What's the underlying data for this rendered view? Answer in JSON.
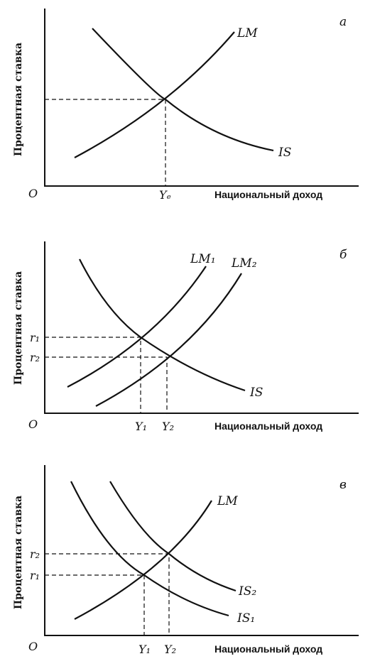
{
  "panels": [
    {
      "letter": "а",
      "y_axis_label": "Процентная ставка",
      "x_axis_label": "Национальный доход",
      "origin": "O",
      "curves": [
        "LM",
        "IS"
      ],
      "x_ticks": [
        "Yₑ"
      ],
      "y_ticks": []
    },
    {
      "letter": "б",
      "y_axis_label": "Процентная ставка",
      "x_axis_label": "Национальный доход",
      "origin": "O",
      "curves": [
        "LM₁",
        "LM₂",
        "IS"
      ],
      "x_ticks": [
        "Y₁",
        "Y₂"
      ],
      "y_ticks": [
        "r₁",
        "r₂"
      ]
    },
    {
      "letter": "в",
      "y_axis_label": "Процентная ставка",
      "x_axis_label": "Национальный доход",
      "origin": "O",
      "curves": [
        "LM",
        "IS₂",
        "IS₁"
      ],
      "x_ticks": [
        "Y₁",
        "Y₂"
      ],
      "y_ticks": [
        "r₂",
        "r₁"
      ]
    }
  ]
}
